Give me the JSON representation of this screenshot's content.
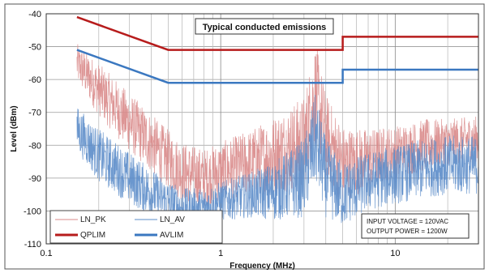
{
  "chart_data": {
    "type": "line",
    "title": "Typical conducted emissions",
    "xlabel": "Frequency (MHz)",
    "ylabel": "Level (dBm)",
    "x_scale": "log",
    "xlim": [
      0.1,
      30
    ],
    "ylim": [
      -110,
      -40
    ],
    "x_ticks": [
      {
        "value": 0.1,
        "label": "0.1"
      },
      {
        "value": 1,
        "label": "1"
      },
      {
        "value": 10,
        "label": "10"
      }
    ],
    "y_ticks": [
      {
        "value": -40,
        "label": "-40"
      },
      {
        "value": -50,
        "label": "-50"
      },
      {
        "value": -60,
        "label": "-60"
      },
      {
        "value": -70,
        "label": "-70"
      },
      {
        "value": -80,
        "label": "-80"
      },
      {
        "value": -90,
        "label": "-90"
      },
      {
        "value": -100,
        "label": "-100"
      },
      {
        "value": -110,
        "label": "-110"
      }
    ],
    "grid": true,
    "legend_position": "bottom-left",
    "series": [
      {
        "name": "LN_PK",
        "color": "#d98a8a",
        "style": "noisy",
        "x": [
          0.15,
          0.2,
          0.3,
          0.45,
          0.6,
          0.8,
          1.0,
          1.5,
          2.0,
          3.0,
          3.5,
          4.0,
          5.0,
          7.0,
          10.0,
          15.0,
          20.0,
          30.0
        ],
        "y": [
          -55,
          -63,
          -73,
          -82,
          -88,
          -90,
          -88,
          -85,
          -83,
          -79,
          -64,
          -77,
          -86,
          -84,
          -82,
          -80,
          -79,
          -78
        ],
        "spread": [
          6,
          8,
          9,
          9,
          9,
          9,
          9,
          10,
          12,
          14,
          16,
          13,
          12,
          9,
          8,
          8,
          7,
          7
        ]
      },
      {
        "name": "LN_AV",
        "color": "#5b8cc9",
        "style": "noisy",
        "x": [
          0.15,
          0.2,
          0.3,
          0.45,
          0.6,
          0.8,
          1.0,
          1.5,
          2.0,
          3.0,
          3.5,
          4.0,
          5.0,
          7.0,
          10.0,
          15.0,
          20.0,
          30.0
        ],
        "y": [
          -75,
          -83,
          -90,
          -96,
          -99,
          -99,
          -97,
          -95,
          -94,
          -90,
          -78,
          -90,
          -95,
          -91,
          -89,
          -87,
          -86,
          -86
        ],
        "spread": [
          7,
          8,
          8,
          7,
          6,
          6,
          6,
          7,
          9,
          12,
          14,
          12,
          10,
          9,
          9,
          9,
          9,
          9
        ]
      },
      {
        "name": "QPLIM",
        "color": "#b71c1c",
        "style": "solid",
        "x": [
          0.15,
          0.5,
          5.0,
          5.0,
          30.0
        ],
        "y": [
          -41,
          -51,
          -51,
          -47,
          -47
        ]
      },
      {
        "name": "AVLIM",
        "color": "#3b78c0",
        "style": "solid",
        "x": [
          0.15,
          0.5,
          5.0,
          5.0,
          30.0
        ],
        "y": [
          -51,
          -61,
          -61,
          -57,
          -57
        ]
      }
    ],
    "annotations": [
      {
        "text": "INPUT VOLTAGE = 120VAC"
      },
      {
        "text": "OUTPUT POWER = 1200W"
      }
    ]
  }
}
